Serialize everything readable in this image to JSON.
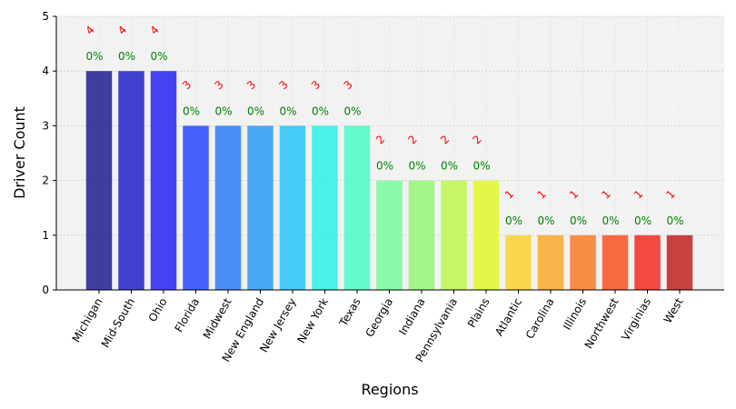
{
  "chart_data": {
    "type": "bar",
    "xlabel": "Regions",
    "ylabel": "Driver Count",
    "ylim": [
      0,
      5
    ],
    "yticks": [
      0,
      1,
      2,
      3,
      4,
      5
    ],
    "grid": true,
    "categories": [
      "Michigan",
      "Mid-South",
      "Ohio",
      "Florida",
      "Midwest",
      "New England",
      "New Jersey",
      "New York",
      "Texas",
      "Georgia",
      "Indiana",
      "Pennsylvania",
      "Plains",
      "Atlantic",
      "Carolina",
      "Illinois",
      "Northwest",
      "Virginias",
      "West"
    ],
    "values": [
      4,
      4,
      4,
      3,
      3,
      3,
      3,
      3,
      3,
      2,
      2,
      2,
      2,
      1,
      1,
      1,
      1,
      1,
      1
    ],
    "count_labels": [
      "4",
      "4",
      "4",
      "3",
      "3",
      "3",
      "3",
      "3",
      "3",
      "2",
      "2",
      "2",
      "2",
      "1",
      "1",
      "1",
      "1",
      "1",
      "1"
    ],
    "percent_labels": [
      "0%",
      "0%",
      "0%",
      "0%",
      "0%",
      "0%",
      "0%",
      "0%",
      "0%",
      "0%",
      "0%",
      "0%",
      "0%",
      "0%",
      "0%",
      "0%",
      "0%",
      "0%",
      "0%"
    ],
    "colors": [
      "#1f1f8f",
      "#2222c8",
      "#2424f5",
      "#2448fb",
      "#2a7df7",
      "#2b9cf7",
      "#29c6f8",
      "#2bf1e8",
      "#4bfcc8",
      "#77fb9b",
      "#95f776",
      "#bcf74d",
      "#e2f82b",
      "#fbd22d",
      "#f9a92b",
      "#f97c24",
      "#f85222",
      "#f22c22",
      "#bf2220"
    ]
  }
}
